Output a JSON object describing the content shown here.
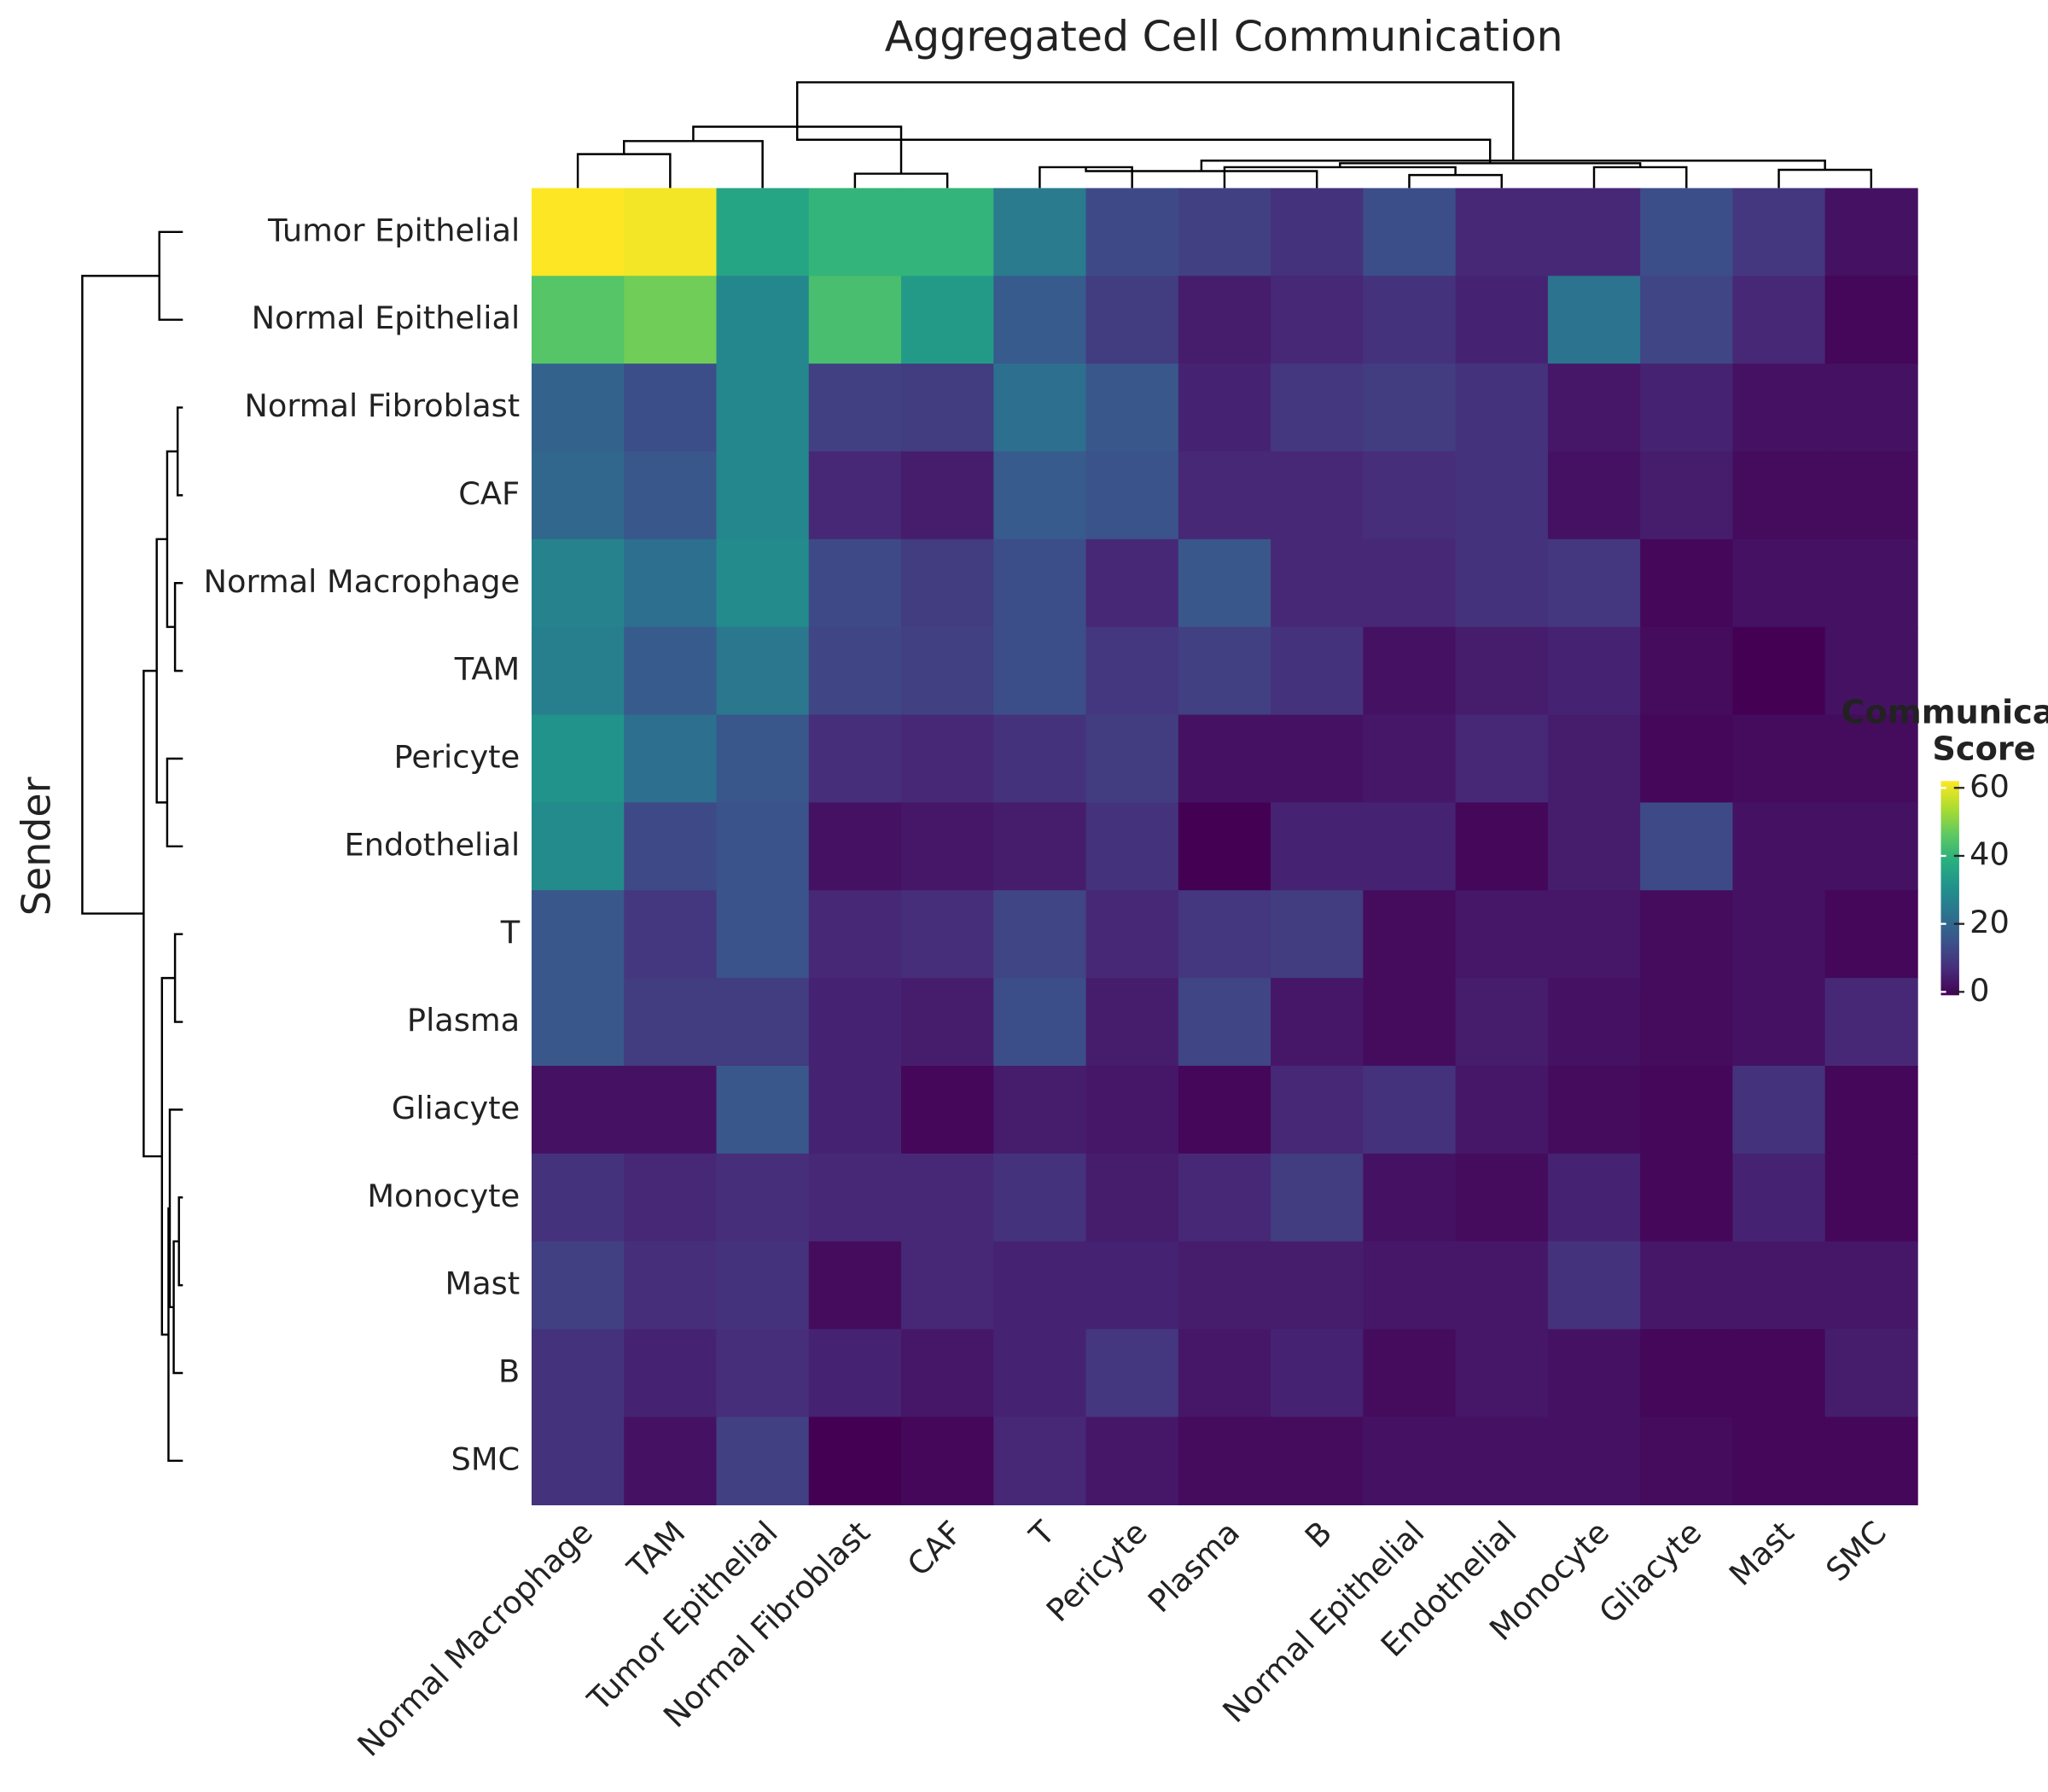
{
  "chart_data": {
    "type": "heatmap",
    "title": "Aggregated Cell Communication",
    "y_label": "Sender",
    "colorbar_title": [
      "Communication",
      "Score"
    ],
    "colormap": "viridis",
    "clim": [
      -1,
      62
    ],
    "cticks": [
      0,
      20,
      40,
      60
    ],
    "columns": [
      "Normal Macrophage",
      "TAM",
      "Tumor Epithelial",
      "Normal Fibroblast",
      "CAF",
      "T",
      "Pericyte",
      "Plasma",
      "B",
      "Normal Epithelial",
      "Endothelial",
      "Monocyte",
      "Gliacyte",
      "Mast",
      "SMC"
    ],
    "rows": [
      "Tumor Epithelial",
      "Normal Epithelial",
      "Normal Fibroblast",
      "CAF",
      "Normal Macrophage",
      "TAM",
      "Pericyte",
      "Endothelial",
      "T",
      "Plasma",
      "Gliacyte",
      "Monocyte",
      "Mast",
      "B",
      "SMC"
    ],
    "values": [
      [
        62,
        61,
        36,
        40,
        40,
        25,
        13,
        11,
        8,
        14,
        6,
        6,
        14,
        9,
        2
      ],
      [
        45,
        48,
        28,
        43,
        33,
        17,
        10,
        4,
        6,
        8,
        5,
        23,
        12,
        6,
        0
      ],
      [
        19,
        14,
        28,
        11,
        10,
        22,
        16,
        5,
        9,
        10,
        8,
        3,
        5,
        2,
        2
      ],
      [
        20,
        16,
        28,
        6,
        4,
        17,
        15,
        6,
        6,
        7,
        8,
        2,
        4,
        1,
        1
      ],
      [
        27,
        22,
        29,
        13,
        10,
        14,
        6,
        16,
        6,
        6,
        8,
        9,
        0,
        2,
        2
      ],
      [
        26,
        17,
        24,
        12,
        11,
        14,
        9,
        11,
        8,
        2,
        4,
        5,
        1,
        -1,
        2
      ],
      [
        31,
        22,
        16,
        7,
        6,
        8,
        10,
        2,
        2,
        3,
        6,
        4,
        0,
        1,
        1
      ],
      [
        29,
        13,
        15,
        2,
        3,
        4,
        8,
        -1,
        5,
        5,
        0,
        4,
        13,
        2,
        2
      ],
      [
        16,
        9,
        15,
        6,
        7,
        12,
        6,
        9,
        10,
        1,
        3,
        3,
        1,
        2,
        0
      ],
      [
        16,
        10,
        10,
        5,
        4,
        14,
        4,
        12,
        3,
        1,
        4,
        2,
        1,
        2,
        6
      ],
      [
        2,
        2,
        16,
        5,
        0,
        4,
        3,
        0,
        6,
        8,
        3,
        1,
        0,
        8,
        0
      ],
      [
        8,
        6,
        7,
        6,
        6,
        8,
        4,
        6,
        10,
        2,
        1,
        5,
        0,
        5,
        0
      ],
      [
        11,
        7,
        8,
        1,
        6,
        5,
        5,
        4,
        4,
        3,
        3,
        8,
        3,
        3,
        3
      ],
      [
        8,
        5,
        7,
        5,
        3,
        5,
        9,
        3,
        5,
        1,
        3,
        2,
        0,
        0,
        4
      ],
      [
        8,
        2,
        11,
        -1,
        0,
        6,
        3,
        1,
        1,
        2,
        2,
        2,
        1,
        0,
        0
      ]
    ]
  }
}
